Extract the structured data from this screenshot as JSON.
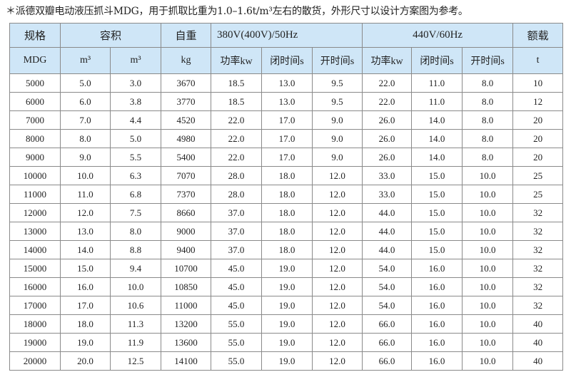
{
  "title": "＊派德双瓣电动液压抓斗MDG，用于抓取比重为1.0–1.6t/m³左右的散货，外形尺寸以设计方案图为参考。",
  "header_row1": [
    "规格",
    "容积",
    "自重",
    "380V(400V)/50Hz",
    "440V/60Hz",
    "额载"
  ],
  "header_row2": [
    "MDG",
    "m³",
    "m³",
    "kg",
    "功率kw",
    "闭时间s",
    "开时间s",
    "功率kw",
    "闭时间s",
    "开时间s",
    "t"
  ],
  "colors": {
    "header_bg": "#cfe6f7",
    "border": "#8a8a8a"
  },
  "rows": [
    [
      "5000",
      "5.0",
      "3.0",
      "3670",
      "18.5",
      "13.0",
      "9.5",
      "22.0",
      "11.0",
      "8.0",
      "10"
    ],
    [
      "6000",
      "6.0",
      "3.8",
      "3770",
      "18.5",
      "13.0",
      "9.5",
      "22.0",
      "11.0",
      "8.0",
      "12"
    ],
    [
      "7000",
      "7.0",
      "4.4",
      "4520",
      "22.0",
      "17.0",
      "9.0",
      "26.0",
      "14.0",
      "8.0",
      "20"
    ],
    [
      "8000",
      "8.0",
      "5.0",
      "4980",
      "22.0",
      "17.0",
      "9.0",
      "26.0",
      "14.0",
      "8.0",
      "20"
    ],
    [
      "9000",
      "9.0",
      "5.5",
      "5400",
      "22.0",
      "17.0",
      "9.0",
      "26.0",
      "14.0",
      "8.0",
      "20"
    ],
    [
      "10000",
      "10.0",
      "6.3",
      "7070",
      "28.0",
      "18.0",
      "12.0",
      "33.0",
      "15.0",
      "10.0",
      "25"
    ],
    [
      "11000",
      "11.0",
      "6.8",
      "7370",
      "28.0",
      "18.0",
      "12.0",
      "33.0",
      "15.0",
      "10.0",
      "25"
    ],
    [
      "12000",
      "12.0",
      "7.5",
      "8660",
      "37.0",
      "18.0",
      "12.0",
      "44.0",
      "15.0",
      "10.0",
      "32"
    ],
    [
      "13000",
      "13.0",
      "8.0",
      "9000",
      "37.0",
      "18.0",
      "12.0",
      "44.0",
      "15.0",
      "10.0",
      "32"
    ],
    [
      "14000",
      "14.0",
      "8.8",
      "9400",
      "37.0",
      "18.0",
      "12.0",
      "44.0",
      "15.0",
      "10.0",
      "32"
    ],
    [
      "15000",
      "15.0",
      "9.4",
      "10700",
      "45.0",
      "19.0",
      "12.0",
      "54.0",
      "16.0",
      "10.0",
      "32"
    ],
    [
      "16000",
      "16.0",
      "10.0",
      "10850",
      "45.0",
      "19.0",
      "12.0",
      "54.0",
      "16.0",
      "10.0",
      "32"
    ],
    [
      "17000",
      "17.0",
      "10.6",
      "11000",
      "45.0",
      "19.0",
      "12.0",
      "54.0",
      "16.0",
      "10.0",
      "32"
    ],
    [
      "18000",
      "18.0",
      "11.3",
      "13200",
      "55.0",
      "19.0",
      "12.0",
      "66.0",
      "16.0",
      "10.0",
      "40"
    ],
    [
      "19000",
      "19.0",
      "11.9",
      "13600",
      "55.0",
      "19.0",
      "12.0",
      "66.0",
      "16.0",
      "10.0",
      "40"
    ],
    [
      "20000",
      "20.0",
      "12.5",
      "14100",
      "55.0",
      "19.0",
      "12.0",
      "66.0",
      "16.0",
      "10.0",
      "40"
    ]
  ]
}
